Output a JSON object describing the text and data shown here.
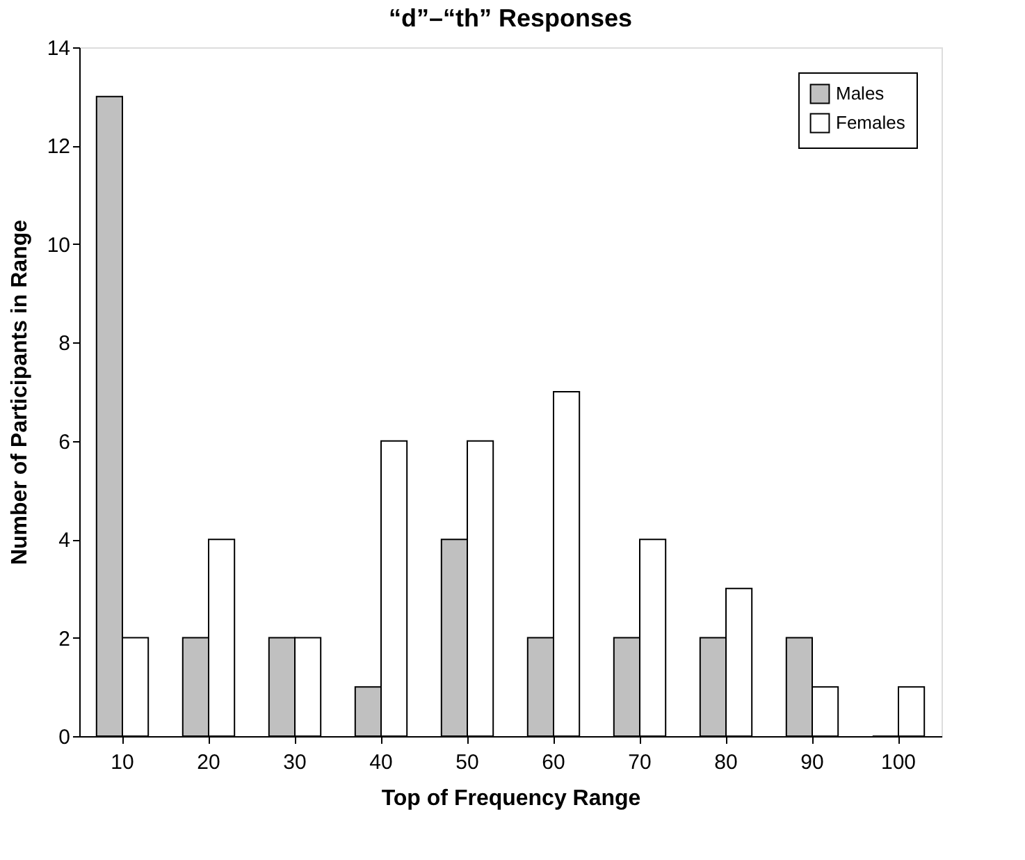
{
  "chart_data": {
    "type": "bar",
    "title": "“d”–“th” Responses",
    "xlabel": "Top of Frequency Range",
    "ylabel": "Number of Participants in Range",
    "categories": [
      "10",
      "20",
      "30",
      "40",
      "50",
      "60",
      "70",
      "80",
      "90",
      "100"
    ],
    "series": [
      {
        "name": "Males",
        "color": "#c0c0c0",
        "values": [
          13,
          2,
          2,
          1,
          4,
          2,
          2,
          2,
          2,
          0
        ]
      },
      {
        "name": "Females",
        "color": "#ffffff",
        "values": [
          2,
          4,
          2,
          6,
          6,
          7,
          4,
          3,
          1,
          1
        ]
      }
    ],
    "ylim": [
      0,
      14
    ],
    "yticks": [
      0,
      2,
      4,
      6,
      8,
      10,
      12,
      14
    ],
    "grid": false,
    "legend": "top right"
  }
}
